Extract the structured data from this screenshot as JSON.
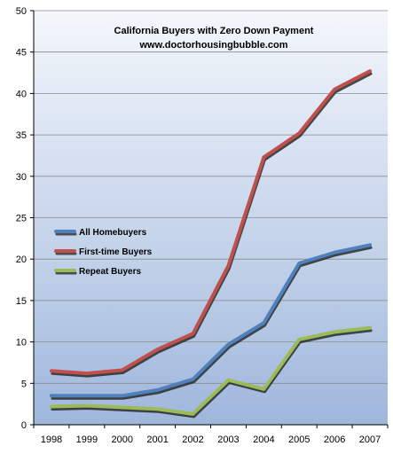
{
  "chart_data": {
    "type": "line",
    "title": "California Buyers with Zero Down Payment",
    "subtitle": "www.doctorhousingbubble.com",
    "categories": [
      "1998",
      "1999",
      "2000",
      "2001",
      "2002",
      "2003",
      "2004",
      "2005",
      "2006",
      "2007"
    ],
    "ylim": [
      0,
      50
    ],
    "yticks": [
      0,
      5,
      10,
      15,
      20,
      25,
      30,
      35,
      40,
      45,
      50
    ],
    "grid": true,
    "legend_position": "left-middle",
    "background_gradient": [
      "#f4f7fc",
      "#9fb7dc"
    ],
    "series": [
      {
        "name": "All Homebuyers",
        "color": "#4f81bd",
        "values": [
          3.5,
          3.5,
          3.5,
          4.2,
          5.5,
          9.7,
          12.3,
          19.5,
          20.8,
          21.7
        ]
      },
      {
        "name": "First-time Buyers",
        "color": "#c0504d",
        "values": [
          6.5,
          6.2,
          6.6,
          9.1,
          11.0,
          19.2,
          32.3,
          35.2,
          40.5,
          42.7
        ]
      },
      {
        "name": "Repeat Buyers",
        "color": "#9bbb59",
        "values": [
          2.2,
          2.3,
          2.1,
          1.9,
          1.3,
          5.4,
          4.3,
          10.3,
          11.2,
          11.7
        ]
      }
    ]
  }
}
